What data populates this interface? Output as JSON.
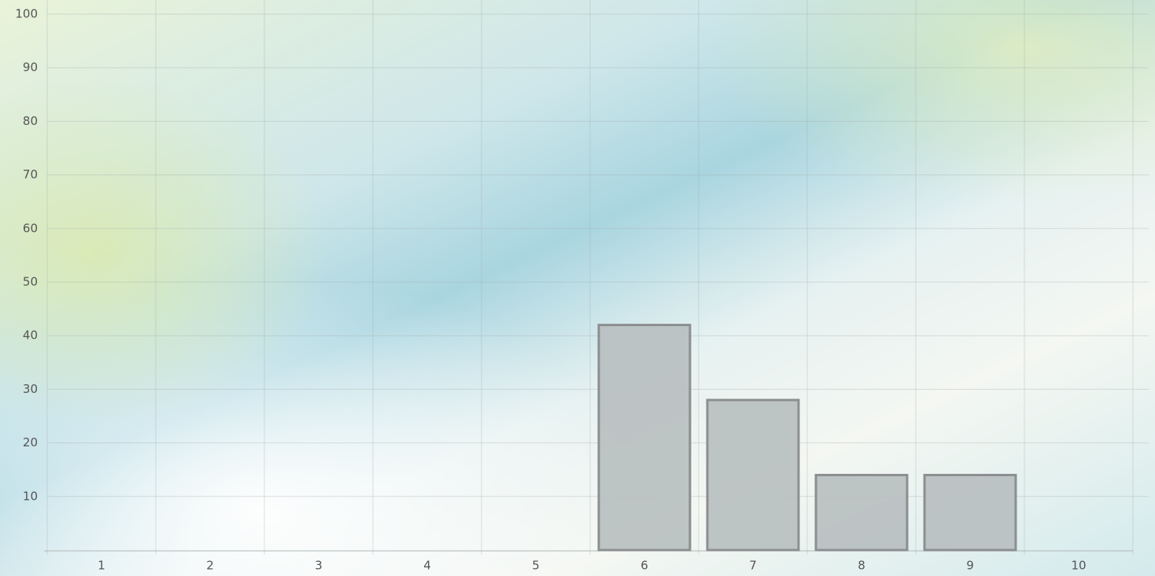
{
  "chart_data": {
    "type": "bar",
    "categories": [
      "1",
      "2",
      "3",
      "4",
      "5",
      "6",
      "7",
      "8",
      "9",
      "10"
    ],
    "values": [
      0,
      0,
      0,
      0,
      0,
      42,
      28,
      14,
      14,
      0
    ],
    "color": "#b9bfc0",
    "ylim": [
      0,
      100
    ],
    "yticks": [
      10,
      20,
      30,
      40,
      50,
      60,
      70,
      80,
      90,
      100
    ],
    "grid": true
  }
}
